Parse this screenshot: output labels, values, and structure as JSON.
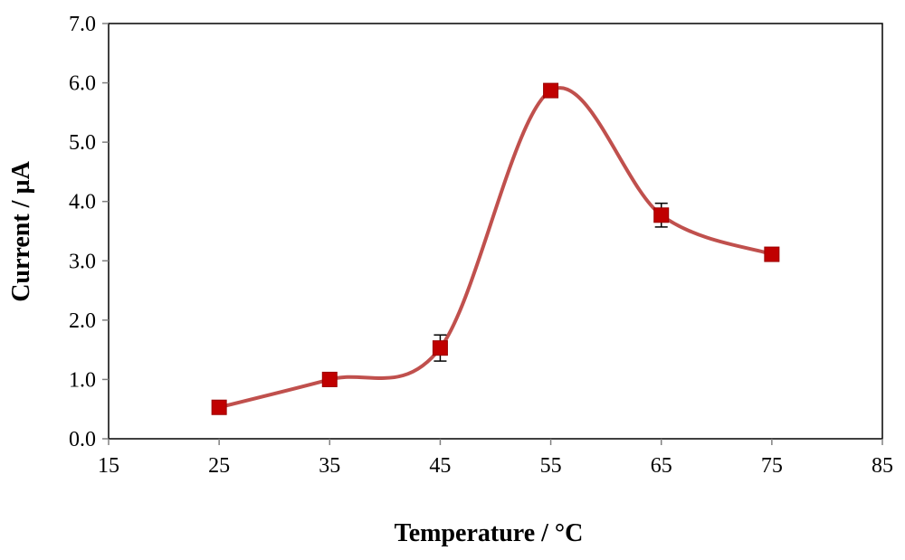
{
  "chart_data": {
    "type": "scatter",
    "title": "",
    "xlabel": "Temperature / °C",
    "ylabel": "Current / µA",
    "xlim": [
      15,
      85
    ],
    "ylim": [
      0,
      7
    ],
    "x_ticks": [
      "15",
      "25",
      "35",
      "45",
      "55",
      "65",
      "75",
      "85"
    ],
    "y_ticks": [
      "0.0",
      "1.0",
      "2.0",
      "3.0",
      "4.0",
      "5.0",
      "6.0",
      "7.0"
    ],
    "grid": false,
    "legend": "none",
    "series": [
      {
        "x": [
          25,
          35,
          45,
          55,
          65,
          75
        ],
        "y": [
          0.53,
          1.0,
          1.53,
          5.87,
          3.77,
          3.11
        ],
        "error": [
          0.0,
          0.0,
          0.22,
          0.0,
          0.2,
          0.0
        ],
        "marker": "square",
        "marker_color": "#c00000",
        "line": "smooth",
        "line_color": "#c0504d"
      }
    ]
  }
}
